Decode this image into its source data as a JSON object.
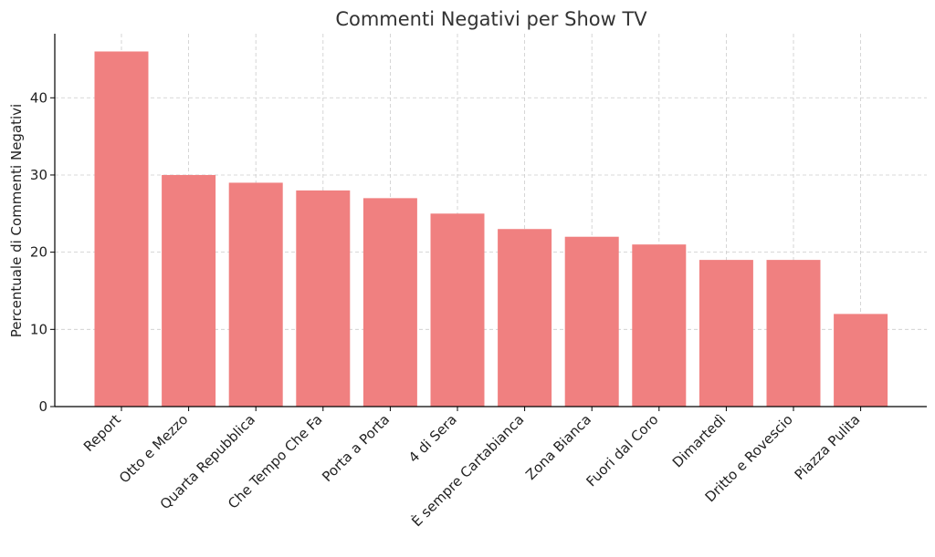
{
  "chart_data": {
    "type": "bar",
    "title": "Commenti Negativi per Show TV",
    "xlabel": "",
    "ylabel": "Percentuale di Commenti Negativi",
    "categories": [
      "Report",
      "Otto e Mezzo",
      "Quarta Repubblica",
      "Che Tempo Che Fa",
      "Porta a Porta",
      "4 di Sera",
      "È sempre Cartabianca",
      "Zona Bianca",
      "Fuori dal Coro",
      "Dimartedì",
      "Dritto e Rovescio",
      "Piazza Pulita"
    ],
    "values": [
      46,
      30,
      29,
      28,
      27,
      25,
      23,
      22,
      21,
      19,
      19,
      12
    ],
    "ylim": [
      0,
      48.3
    ],
    "yticks": [
      0,
      10,
      20,
      30,
      40
    ],
    "grid": true,
    "bar_color": "#f08080"
  }
}
